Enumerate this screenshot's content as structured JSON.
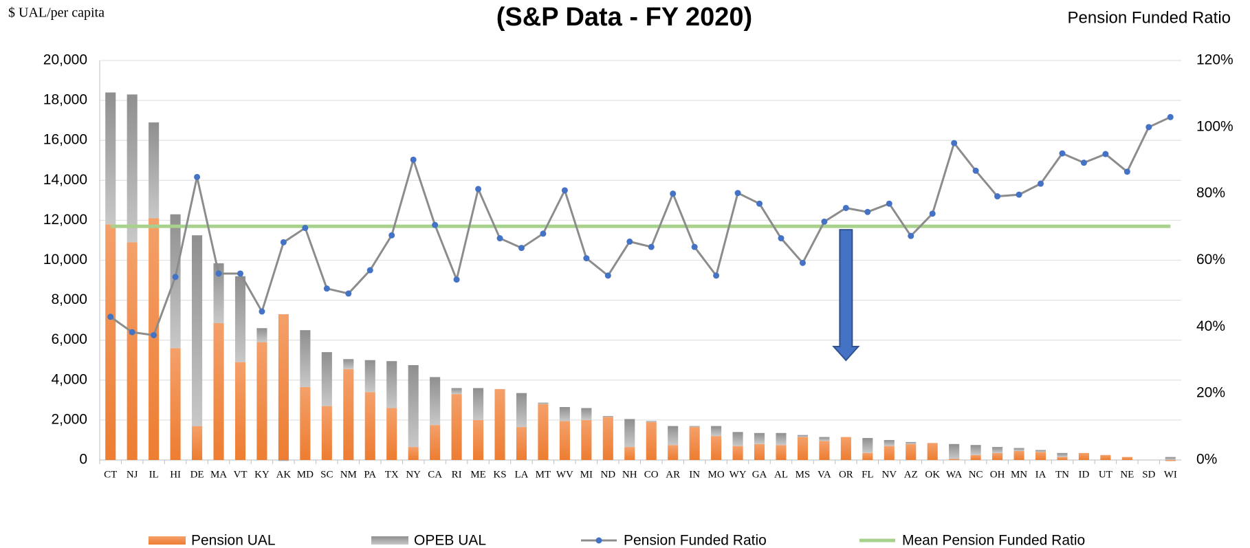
{
  "chart_data": {
    "type": "stacked-bar-line",
    "title": "(S&P Data - FY 2020)",
    "y_label": "$ UAL/per capita",
    "y2_label": "Pension Funded Ratio",
    "categories": [
      "CT",
      "NJ",
      "IL",
      "HI",
      "DE",
      "MA",
      "VT",
      "KY",
      "AK",
      "MD",
      "SC",
      "NM",
      "PA",
      "TX",
      "NY",
      "CA",
      "RI",
      "ME",
      "KS",
      "LA",
      "MT",
      "WV",
      "MI",
      "ND",
      "NH",
      "CO",
      "AR",
      "IN",
      "MO",
      "WY",
      "GA",
      "AL",
      "MS",
      "VA",
      "OR",
      "FL",
      "NV",
      "AZ",
      "OK",
      "WA",
      "NC",
      "OH",
      "MN",
      "IA",
      "TN",
      "ID",
      "UT",
      "NE",
      "SD",
      "WI"
    ],
    "series": [
      {
        "name": "Pension UAL",
        "type": "bar",
        "color": "#ed7d31",
        "values": [
          11800,
          10900,
          12100,
          5600,
          1700,
          6850,
          4900,
          5900,
          7300,
          3650,
          2700,
          4550,
          3400,
          2600,
          650,
          1750,
          3300,
          2000,
          3550,
          1650,
          2800,
          1950,
          2000,
          2150,
          650,
          1900,
          750,
          1650,
          1200,
          700,
          800,
          750,
          1150,
          950,
          1150,
          350,
          700,
          800,
          850,
          50,
          250,
          350,
          450,
          400,
          150,
          350,
          250,
          150,
          0,
          -50
        ]
      },
      {
        "name": "OPEB UAL",
        "type": "bar",
        "color": "#a5a5a5",
        "values": [
          6600,
          7400,
          4800,
          6700,
          9550,
          3000,
          4300,
          700,
          -50,
          2850,
          2700,
          500,
          1600,
          2350,
          4100,
          2400,
          300,
          1600,
          0,
          1700,
          70,
          700,
          600,
          50,
          1400,
          50,
          950,
          50,
          500,
          700,
          550,
          600,
          100,
          200,
          0,
          750,
          300,
          100,
          0,
          750,
          500,
          300,
          150,
          100,
          200,
          0,
          0,
          0,
          0,
          150
        ]
      },
      {
        "name": "Pension Funded Ratio",
        "type": "line",
        "axis": "y2",
        "color": "#8c8c8c",
        "marker_color": "#4472c4",
        "values": [
          43,
          38.4,
          37.5,
          55,
          85,
          56,
          56,
          44.6,
          65.4,
          69.7,
          51.5,
          50,
          57,
          67.5,
          90.2,
          70.6,
          54.2,
          81.4,
          66.6,
          63.7,
          68,
          81,
          60.6,
          55.4,
          65.6,
          64,
          80,
          64,
          55.4,
          80.2,
          77,
          66.6,
          59.2,
          71.6,
          75.7,
          74.5,
          77,
          67.3,
          74,
          95.2,
          86.9,
          79.2,
          79.7,
          83,
          92.1,
          89.3,
          91.9,
          86.6,
          100,
          103
        ]
      },
      {
        "name": "Mean Pension Funded Ratio",
        "type": "mean",
        "axis": "y2",
        "color": "#a9d18e",
        "value": 70.2
      }
    ],
    "ylim": [
      0,
      20000
    ],
    "yticks": [
      0,
      {
        "value": 2000,
        "label": "2,000"
      },
      {
        "value": 4000,
        "label": "4,000"
      },
      {
        "value": 6000,
        "label": "6,000"
      },
      {
        "value": 8000,
        "label": "8,000"
      },
      {
        "value": 10000,
        "label": "10,000"
      },
      {
        "value": 12000,
        "label": "12,000"
      },
      {
        "value": 14000,
        "label": "14,000"
      },
      {
        "value": 16000,
        "label": "16,000"
      },
      {
        "value": 18000,
        "label": "18,000"
      },
      {
        "value": 20000,
        "label": "20,000"
      }
    ],
    "y2lim": [
      0,
      120
    ],
    "y2ticks": [
      {
        "value": 0,
        "label": "0%"
      },
      {
        "value": 20,
        "label": "20%"
      },
      {
        "value": 40,
        "label": "40%"
      },
      {
        "value": 60,
        "label": "60%"
      },
      {
        "value": 80,
        "label": "80%"
      },
      {
        "value": 100,
        "label": "100%"
      },
      {
        "value": 120,
        "label": "120%"
      }
    ],
    "grid": true,
    "legend": "bottom"
  }
}
